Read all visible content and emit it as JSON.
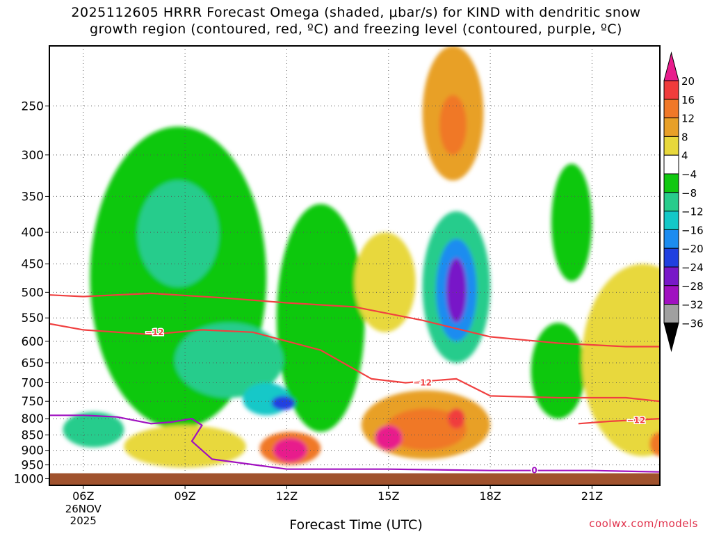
{
  "header": {
    "title_line1": "2025112605 HRRR Forecast Omega (shaded, μbar/s) for KIND with dendritic snow",
    "title_line2": "growth region (contoured, red, ºC) and freezing level (contoured, purple, ºC)"
  },
  "footer": {
    "xlabel": "Forecast Time (UTC)",
    "credit": "coolwx.com/models"
  },
  "chart_data": {
    "type": "contour",
    "title": "2025112605 HRRR Forecast Omega (shaded, μbar/s) for KIND with dendritic snow growth region (contoured, red, ºC) and freezing level (contoured, purple, ºC)",
    "xlabel": "Forecast Time (UTC)",
    "ylabel": "",
    "x_unit": "hour UTC",
    "xlim": [
      5,
      23
    ],
    "x_ticks": [
      {
        "x": 6,
        "label": "06Z",
        "sub": [
          "26NOV",
          "2025"
        ]
      },
      {
        "x": 9,
        "label": "09Z"
      },
      {
        "x": 12,
        "label": "12Z"
      },
      {
        "x": 15,
        "label": "15Z"
      },
      {
        "x": 18,
        "label": "18Z"
      },
      {
        "x": 21,
        "label": "21Z"
      }
    ],
    "y_unit": "hPa",
    "y_scale": "log",
    "ylim": [
      1025,
      200
    ],
    "y_ticks": [
      250,
      300,
      350,
      400,
      450,
      500,
      550,
      600,
      650,
      700,
      750,
      800,
      850,
      900,
      950,
      1000
    ],
    "grid": true,
    "ground_level_hPa": 980,
    "colorbar": {
      "labels": [
        "20",
        "16",
        "12",
        "8",
        "4",
        "−4",
        "−8",
        "−12",
        "−16",
        "−20",
        "−24",
        "−28",
        "−32",
        "−36"
      ],
      "bins": [
        {
          "min": 20,
          "max": null,
          "color": "#e81c8c"
        },
        {
          "min": 16,
          "max": 20,
          "color": "#f03c3c"
        },
        {
          "min": 12,
          "max": 16,
          "color": "#f07828"
        },
        {
          "min": 8,
          "max": 12,
          "color": "#e8a028"
        },
        {
          "min": 4,
          "max": 8,
          "color": "#e8d83c"
        },
        {
          "min": -4,
          "max": 4,
          "color": "#ffffff"
        },
        {
          "min": -8,
          "max": -4,
          "color": "#10c810"
        },
        {
          "min": -12,
          "max": -8,
          "color": "#28cc8c"
        },
        {
          "min": -16,
          "max": -12,
          "color": "#14c8c8"
        },
        {
          "min": -20,
          "max": -16,
          "color": "#1c8cf0"
        },
        {
          "min": -24,
          "max": -20,
          "color": "#2040e0"
        },
        {
          "min": -28,
          "max": -24,
          "color": "#7818c8"
        },
        {
          "min": -32,
          "max": -28,
          "color": "#a010c0"
        },
        {
          "min": -36,
          "max": -32,
          "color": "#a0a0a0"
        },
        {
          "min": null,
          "max": -36,
          "color": "#000000"
        }
      ]
    },
    "omega_features": [
      {
        "x": 8.8,
        "p": 470,
        "dx": 2.6,
        "dp_up": 200,
        "dp_down": 360,
        "value": -6
      },
      {
        "x": 13.0,
        "p": 560,
        "dx": 1.3,
        "dp_up": 200,
        "dp_down": 280,
        "value": -5
      },
      {
        "x": 20.0,
        "p": 680,
        "dx": 0.8,
        "dp_up": 120,
        "dp_down": 120,
        "value": -6
      },
      {
        "x": 20.4,
        "p": 400,
        "dx": 0.6,
        "dp_up": 90,
        "dp_down": 80,
        "value": -5
      },
      {
        "x": 8.8,
        "p": 390,
        "dx": 1.2,
        "dp_up": 60,
        "dp_down": 100,
        "value": -10
      },
      {
        "x": 10.3,
        "p": 650,
        "dx": 1.6,
        "dp_up": 90,
        "dp_down": 90,
        "value": -10
      },
      {
        "x": 6.3,
        "p": 840,
        "dx": 0.9,
        "dp_up": 60,
        "dp_down": 50,
        "value": -10
      },
      {
        "x": 11.4,
        "p": 750,
        "dx": 0.7,
        "dp_up": 50,
        "dp_down": 40,
        "value": -16
      },
      {
        "x": 11.9,
        "p": 755,
        "dx": 0.35,
        "dp_up": 20,
        "dp_down": 20,
        "value": -21
      },
      {
        "x": 17.0,
        "p": 500,
        "dx": 1.0,
        "dp_up": 130,
        "dp_down": 150,
        "value": -10
      },
      {
        "x": 17.0,
        "p": 500,
        "dx": 0.6,
        "dp_up": 90,
        "dp_down": 100,
        "value": -18
      },
      {
        "x": 17.0,
        "p": 500,
        "dx": 0.3,
        "dp_up": 60,
        "dp_down": 60,
        "value": -26
      },
      {
        "x": 16.9,
        "p": 270,
        "dx": 0.9,
        "dp_up": 70,
        "dp_down": 60,
        "value": 8
      },
      {
        "x": 16.9,
        "p": 270,
        "dx": 0.4,
        "dp_up": 30,
        "dp_down": 30,
        "value": 14
      },
      {
        "x": 14.9,
        "p": 500,
        "dx": 0.9,
        "dp_up": 100,
        "dp_down": 80,
        "value": 5
      },
      {
        "x": 16.1,
        "p": 830,
        "dx": 1.9,
        "dp_up": 110,
        "dp_down": 100,
        "value": 9
      },
      {
        "x": 16.1,
        "p": 830,
        "dx": 1.2,
        "dp_up": 60,
        "dp_down": 70,
        "value": 13
      },
      {
        "x": 17.0,
        "p": 800,
        "dx": 0.25,
        "dp_up": 30,
        "dp_down": 30,
        "value": 17
      },
      {
        "x": 15.0,
        "p": 860,
        "dx": 0.4,
        "dp_up": 40,
        "dp_down": 40,
        "value": 21
      },
      {
        "x": 12.1,
        "p": 900,
        "dx": 0.9,
        "dp_up": 60,
        "dp_down": 50,
        "value": 14
      },
      {
        "x": 12.1,
        "p": 900,
        "dx": 0.5,
        "dp_up": 40,
        "dp_down": 40,
        "value": 22
      },
      {
        "x": 9.0,
        "p": 900,
        "dx": 1.8,
        "dp_up": 80,
        "dp_down": 60,
        "value": 5
      },
      {
        "x": 22.5,
        "p": 700,
        "dx": 1.8,
        "dp_up": 250,
        "dp_down": 220,
        "value": 6
      },
      {
        "x": 23.0,
        "p": 880,
        "dx": 0.3,
        "dp_up": 40,
        "dp_down": 40,
        "value": 12
      }
    ],
    "series": [
      {
        "name": "dendritic snow growth region",
        "color": "#f04040",
        "labels": [
          "−12"
        ],
        "lines": [
          {
            "x": [
              5,
              6,
              8,
              10,
              12,
              14,
              16,
              18,
              20,
              22,
              23
            ],
            "p": [
              505,
              508,
              502,
              510,
              520,
              528,
              555,
              590,
              604,
              612,
              612
            ]
          },
          {
            "x": [
              5,
              6,
              8,
              9.5,
              11,
              13,
              14.5,
              15.5,
              17,
              18,
              20,
              22,
              23
            ],
            "p": [
              562,
              575,
              585,
              575,
              580,
              620,
              690,
              700,
              690,
              735,
              740,
              740,
              750
            ]
          },
          {
            "x": [
              20.6,
              21.5,
              23
            ],
            "p": [
              815,
              808,
              800
            ]
          }
        ]
      },
      {
        "name": "freezing level",
        "color": "#a010c0",
        "labels": [
          "0"
        ],
        "lines": [
          {
            "x": [
              5,
              6,
              7,
              8,
              8.6,
              9.2,
              9.5,
              9.2,
              9.8,
              12,
              15,
              18,
              21,
              23
            ],
            "p": [
              790,
              790,
              795,
              815,
              810,
              800,
              820,
              870,
              930,
              965,
              965,
              970,
              970,
              975
            ]
          }
        ]
      }
    ],
    "annotations": [
      "−12",
      "−12",
      "−12",
      "0"
    ]
  }
}
